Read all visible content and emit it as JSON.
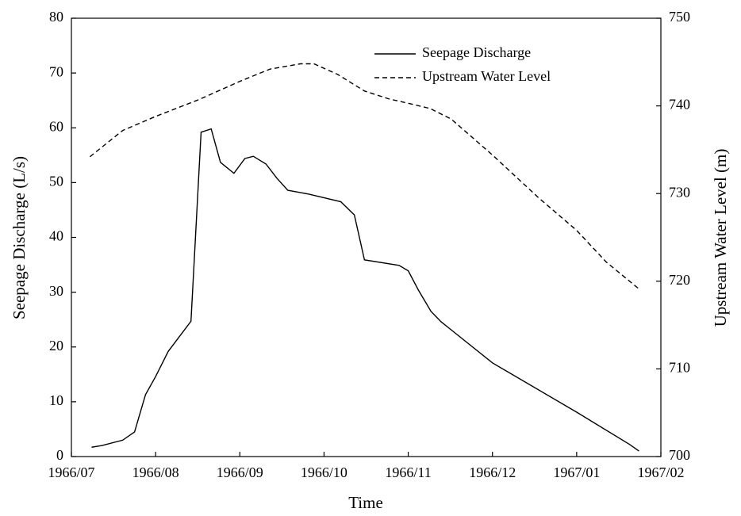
{
  "chart_data": {
    "type": "line",
    "x_label": "Time",
    "y_label": "Seepage Discharge (L/s)",
    "y2_label": "Upstream Water Level (m)",
    "xlim": [
      0,
      7
    ],
    "xticks": [
      {
        "value": 0,
        "label": "1966/07"
      },
      {
        "value": 1,
        "label": "1966/08"
      },
      {
        "value": 2,
        "label": "1966/09"
      },
      {
        "value": 3,
        "label": "1966/10"
      },
      {
        "value": 4,
        "label": "1966/11"
      },
      {
        "value": 5,
        "label": "1966/12"
      },
      {
        "value": 6,
        "label": "1967/01"
      },
      {
        "value": 7,
        "label": "1967/02"
      }
    ],
    "ylim": [
      0,
      80
    ],
    "yticks": [
      0,
      10,
      20,
      30,
      40,
      50,
      60,
      70,
      80
    ],
    "y2lim": [
      700,
      750
    ],
    "y2ticks": [
      700,
      710,
      720,
      730,
      740,
      750
    ],
    "legend": "upper right",
    "series": [
      {
        "name": "Seepage Discharge",
        "color": "#000000",
        "dash": "solid",
        "x": [
          0.24,
          0.36,
          0.61,
          0.75,
          0.88,
          1.0,
          1.15,
          1.42,
          1.54,
          1.66,
          1.77,
          1.93,
          2.06,
          2.16,
          2.31,
          2.44,
          2.57,
          2.82,
          3.2,
          3.24,
          3.36,
          3.48,
          3.89,
          4.0,
          4.12,
          4.27,
          4.39,
          4.52,
          5.0,
          6.0,
          6.63,
          6.74
        ],
        "values": [
          1.7,
          2.0,
          3.0,
          4.5,
          11.3,
          14.6,
          19.2,
          24.7,
          59.2,
          59.8,
          53.7,
          51.7,
          54.4,
          54.8,
          53.4,
          50.8,
          48.6,
          47.9,
          46.5,
          45.9,
          44.1,
          35.9,
          34.9,
          33.9,
          30.4,
          26.5,
          24.6,
          23.0,
          17.1,
          8.1,
          2.2,
          1.0
        ]
      },
      {
        "name": "Upstream Water Level",
        "color": "#000000",
        "dash": "dashed",
        "axis": "y2",
        "x": [
          0.22,
          0.61,
          1.0,
          1.51,
          2.0,
          2.36,
          2.72,
          2.88,
          3.16,
          3.48,
          3.77,
          4.0,
          4.26,
          4.51,
          5.0,
          5.55,
          6.0,
          6.35,
          6.73
        ],
        "values": [
          734.2,
          737.2,
          738.8,
          740.7,
          742.8,
          744.2,
          744.8,
          744.8,
          743.6,
          741.7,
          740.8,
          740.3,
          739.7,
          738.5,
          734.4,
          729.5,
          725.8,
          722.2,
          719.2
        ]
      }
    ]
  }
}
